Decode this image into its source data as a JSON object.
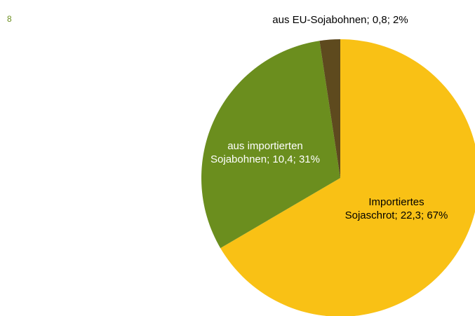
{
  "page_number": "8",
  "chart_data": {
    "type": "pie",
    "values": [
      22.3,
      10.4,
      0.8
    ],
    "value_labels": [
      "Importiertes Sojaschrot; 22,3; 67%",
      "aus importierten Sojabohnen; 10,4; 31%",
      "aus EU-Sojabohnen; 0,8; 2%"
    ],
    "colors": [
      "#f9c115",
      "#6b8e1e",
      "#5e4a1e"
    ]
  }
}
